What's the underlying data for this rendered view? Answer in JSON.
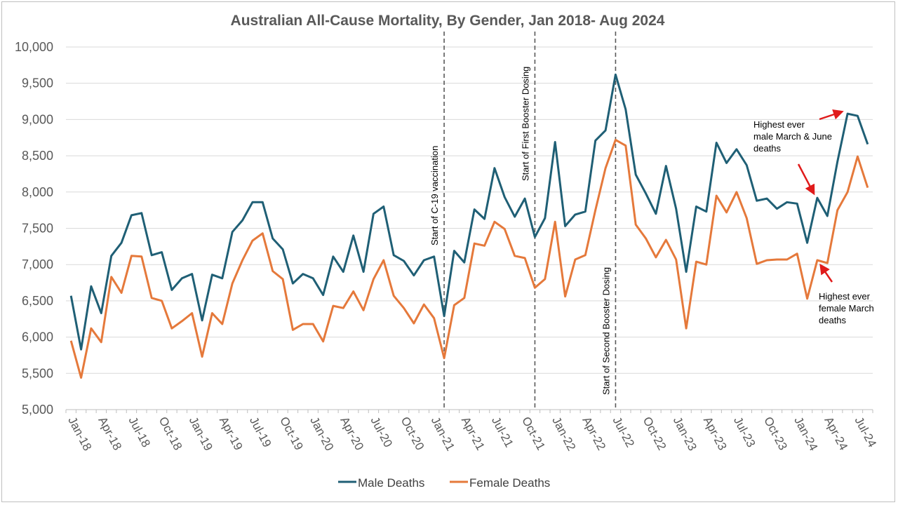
{
  "chart_data": {
    "type": "line",
    "title": "Australian All-Cause Mortality, By Gender, Jan 2018- Aug 2024",
    "xlabel": "",
    "ylabel": "",
    "ylim": [
      5000,
      10000
    ],
    "yticks": [
      "5,000",
      "5,500",
      "6,000",
      "6,500",
      "7,000",
      "7,500",
      "8,000",
      "8,500",
      "9,000",
      "9,500",
      "10,000"
    ],
    "grid": "horizontal",
    "legend_position": "bottom",
    "x_tick_labels": [
      "Jan-18",
      "Apr-18",
      "Jul-18",
      "Oct-18",
      "Jan-19",
      "Apr-19",
      "Jul-19",
      "Oct-19",
      "Jan-20",
      "Apr-20",
      "Jul-20",
      "Oct-20",
      "Jan-21",
      "Apr-21",
      "Jul-21",
      "Oct-21",
      "Jan-22",
      "Apr-22",
      "Jul-22",
      "Oct-22",
      "Jan-23",
      "Apr-23",
      "Jul-23",
      "Oct-23",
      "Jan-24",
      "Apr-24",
      "Jul-24"
    ],
    "x_start": "2018-01",
    "series": [
      {
        "name": "Male Deaths",
        "color": "#1f5f75",
        "values": [
          6570,
          5830,
          6700,
          6330,
          7120,
          7300,
          7680,
          7710,
          7130,
          7170,
          6650,
          6810,
          6870,
          6230,
          6860,
          6810,
          7450,
          7610,
          7860,
          7860,
          7360,
          7210,
          6740,
          6870,
          6810,
          6580,
          7110,
          6900,
          7400,
          6900,
          7700,
          7800,
          7130,
          7050,
          6850,
          7060,
          7110,
          6290,
          7190,
          7030,
          7760,
          7630,
          8330,
          7930,
          7660,
          7910,
          7380,
          7640,
          8690,
          7530,
          7690,
          7730,
          8710,
          8850,
          9620,
          9140,
          8240,
          7980,
          7700,
          8360,
          7770,
          6900,
          7800,
          7730,
          8680,
          8400,
          8590,
          8370,
          7880,
          7910,
          7770,
          7860,
          7840,
          7300,
          7920,
          7670,
          8420,
          9080,
          9050,
          8660
        ]
      },
      {
        "name": "Female Deaths",
        "color": "#e5793b",
        "values": [
          5950,
          5440,
          6120,
          5930,
          6830,
          6610,
          7120,
          7110,
          6540,
          6500,
          6120,
          6220,
          6330,
          5730,
          6330,
          6180,
          6740,
          7060,
          7330,
          7430,
          6910,
          6800,
          6100,
          6180,
          6180,
          5940,
          6430,
          6400,
          6630,
          6370,
          6800,
          7060,
          6570,
          6400,
          6190,
          6450,
          6260,
          5710,
          6440,
          6540,
          7290,
          7260,
          7590,
          7490,
          7120,
          7090,
          6680,
          6800,
          7590,
          6560,
          7070,
          7130,
          7750,
          8330,
          8720,
          8640,
          7550,
          7360,
          7100,
          7340,
          7070,
          6120,
          7040,
          7000,
          7950,
          7720,
          8000,
          7640,
          7010,
          7060,
          7070,
          7070,
          7150,
          6530,
          7060,
          7020,
          7750,
          8000,
          8490,
          8060
        ]
      }
    ],
    "vertical_markers": [
      {
        "label": "Start of C-19 vaccination",
        "month": "Feb-21"
      },
      {
        "label": "Start of First Booster Dosing",
        "month": "Nov-21"
      },
      {
        "label": "Start of Second Booster Dosing",
        "month": "Jul-22"
      }
    ],
    "annotations": [
      {
        "lines": [
          "Highest ever",
          "male March & June",
          "deaths"
        ]
      },
      {
        "lines": [
          "Highest ever",
          "female March",
          "deaths"
        ]
      }
    ]
  }
}
